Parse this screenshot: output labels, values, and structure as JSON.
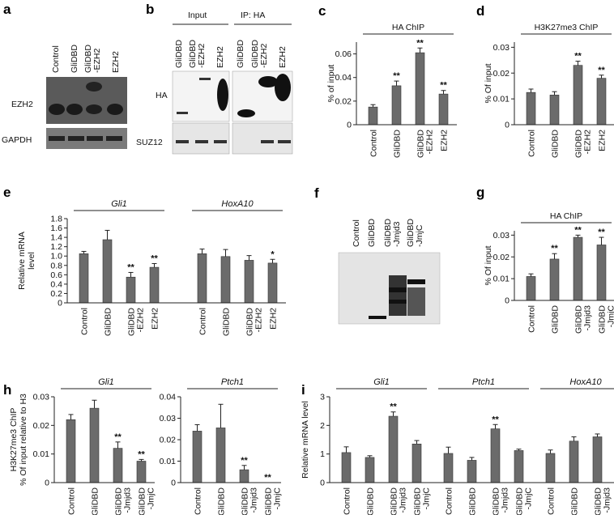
{
  "panels": {
    "a": {
      "label": "a",
      "lanes": [
        "Control",
        "GliDBD",
        "GliDBD\n-EZH2",
        "EZH2"
      ],
      "rows": [
        "EZH2",
        "GAPDH"
      ]
    },
    "b": {
      "label": "b",
      "groups": [
        "Input",
        "IP: HA"
      ],
      "lanes": [
        "GliDBD",
        "GliDBD\n-EZH2",
        "EZH2",
        "GliDBD",
        "GliDBD\n-EZH2",
        "EZH2"
      ],
      "rows": [
        "HA",
        "SUZ12"
      ]
    },
    "f": {
      "label": "f",
      "lanes": [
        "Control",
        "GliDBD",
        "GliDBD\n-Jmjd3",
        "GliDBD\n-JmjC"
      ]
    }
  },
  "chart_data": [
    {
      "id": "c",
      "panel_label": "c",
      "type": "bar",
      "groups": [
        {
          "name": "HA ChIP",
          "categories": [
            "Control",
            "GliDBD",
            "GliDBD\n-EZH2",
            "EZH2"
          ],
          "values": [
            0.015,
            0.033,
            0.061,
            0.026
          ],
          "errors": [
            0.002,
            0.004,
            0.004,
            0.003
          ],
          "stars": [
            "",
            "**",
            "**",
            "**"
          ]
        }
      ],
      "ylabel": "% of input",
      "ylim": [
        0,
        0.07
      ],
      "ticks": [
        0,
        0.02,
        0.04,
        0.06
      ],
      "tick_labels": [
        "0",
        "0.02",
        "0.04",
        "0.06"
      ]
    },
    {
      "id": "d",
      "panel_label": "d",
      "type": "bar",
      "groups": [
        {
          "name": "H3K27me3 ChIP",
          "categories": [
            "Control",
            "GliDBD",
            "GliDBD\n-EZH2",
            "EZH2"
          ],
          "values": [
            0.0125,
            0.0115,
            0.023,
            0.018
          ],
          "errors": [
            0.0013,
            0.0013,
            0.0016,
            0.0012
          ],
          "stars": [
            "",
            "",
            "**",
            "**"
          ]
        }
      ],
      "ylabel": "% Of input",
      "ylim": [
        0,
        0.032
      ],
      "ticks": [
        0,
        0.01,
        0.02,
        0.03
      ],
      "tick_labels": [
        "0",
        "0.01",
        "0.02",
        "0.03"
      ]
    },
    {
      "id": "e",
      "panel_label": "e",
      "type": "bar",
      "groups": [
        {
          "name": "Gli1",
          "italic": true,
          "categories": [
            "Control",
            "GliDBD",
            "GliDBD\n-EZH2",
            "EZH2"
          ],
          "values": [
            1.05,
            1.35,
            0.55,
            0.76
          ],
          "errors": [
            0.05,
            0.2,
            0.1,
            0.08
          ],
          "stars": [
            "",
            "",
            "**",
            "**"
          ]
        },
        {
          "name": "HoxA10",
          "italic": true,
          "categories": [
            "Control",
            "GliDBD",
            "GliDBD\n-EZH2",
            "EZH2"
          ],
          "values": [
            1.05,
            0.99,
            0.91,
            0.85
          ],
          "errors": [
            0.1,
            0.15,
            0.1,
            0.08
          ],
          "stars": [
            "",
            "",
            "",
            "*"
          ]
        }
      ],
      "ylabel": "Relative mRNA\nlevel",
      "ylim": [
        0,
        1.8
      ],
      "ticks": [
        0,
        0.2,
        0.4,
        0.6,
        0.8,
        1.0,
        1.2,
        1.4,
        1.6,
        1.8
      ],
      "tick_labels": [
        "0",
        "0.2",
        "0.4",
        "0.6",
        "0.8",
        "1.0",
        "1.2",
        "1.4",
        "1.6",
        "1.8"
      ]
    },
    {
      "id": "g",
      "panel_label": "g",
      "type": "bar",
      "groups": [
        {
          "name": "HA ChIP",
          "categories": [
            "Control",
            "GliDBD",
            "GliDBD\n-Jmjd3",
            "GliDBD\n-JmjC"
          ],
          "values": [
            0.011,
            0.019,
            0.029,
            0.0255
          ],
          "errors": [
            0.0012,
            0.0025,
            0.001,
            0.0035
          ],
          "stars": [
            "",
            "**",
            "**",
            "**"
          ]
        }
      ],
      "ylabel": "% Of input",
      "ylim": [
        0,
        0.032
      ],
      "ticks": [
        0,
        0.01,
        0.02,
        0.03
      ],
      "tick_labels": [
        "0",
        "0.01",
        "0.02",
        "0.03"
      ]
    },
    {
      "id": "h1",
      "panel_label": "h",
      "type": "bar",
      "groups": [
        {
          "name": "Gli1",
          "italic": true,
          "categories": [
            "Control",
            "GliDBD",
            "GliDBD\n-Jmjd3",
            "GliDBD\n-JmjC"
          ],
          "values": [
            0.022,
            0.026,
            0.012,
            0.0075
          ],
          "errors": [
            0.0018,
            0.0028,
            0.0022,
            0.0006
          ],
          "stars": [
            "",
            "",
            "**",
            "**"
          ]
        }
      ],
      "ylabel": "H3K27me3 ChIP\n% Of input relative to H3",
      "ylim": [
        0,
        0.03
      ],
      "ticks": [
        0,
        0.01,
        0.02,
        0.03
      ],
      "tick_labels": [
        "0",
        "0.01",
        "0.02",
        "0.03"
      ]
    },
    {
      "id": "h2",
      "type": "bar",
      "groups": [
        {
          "name": "Ptch1",
          "italic": true,
          "categories": [
            "Control",
            "GliDBD",
            "GliDBD\n-Jmjd3",
            "GliDBD\n-JmjC"
          ],
          "values": [
            0.024,
            0.0255,
            0.006,
            0.0
          ],
          "errors": [
            0.003,
            0.011,
            0.002,
            0.0
          ],
          "stars": [
            "",
            "",
            "**",
            "**"
          ]
        }
      ],
      "ylabel": "",
      "ylim": [
        0,
        0.04
      ],
      "ticks": [
        0,
        0.01,
        0.02,
        0.03,
        0.04
      ],
      "tick_labels": [
        "0",
        "0.01",
        "0.02",
        "0.03",
        "0.04"
      ]
    },
    {
      "id": "i",
      "panel_label": "i",
      "type": "bar",
      "groups": [
        {
          "name": "Gli1",
          "italic": true,
          "categories": [
            "Control",
            "GliDBD",
            "GliDBD\n-Jmjd3",
            "GliDBD\n-JmjC"
          ],
          "values": [
            1.05,
            0.88,
            2.32,
            1.35
          ],
          "errors": [
            0.2,
            0.06,
            0.15,
            0.12
          ],
          "stars": [
            "",
            "",
            "**",
            ""
          ]
        },
        {
          "name": "Ptch1",
          "italic": true,
          "categories": [
            "Control",
            "GliDBD",
            "GliDBD\n-Jmjd3",
            "GliDBD\n-JmjC"
          ],
          "values": [
            1.02,
            0.78,
            1.88,
            1.12
          ],
          "errors": [
            0.22,
            0.1,
            0.15,
            0.05
          ],
          "stars": [
            "",
            "",
            "**",
            ""
          ]
        },
        {
          "name": "HoxA10",
          "italic": true,
          "categories": [
            "Control",
            "GliDBD",
            "GliDBD\n-Jmjd3",
            "GliDBD\n-JmjC"
          ],
          "values": [
            1.02,
            1.45,
            1.6,
            1.3
          ],
          "errors": [
            0.12,
            0.15,
            0.1,
            0.2
          ],
          "stars": [
            "",
            "",
            "",
            ""
          ]
        }
      ],
      "ylabel": "Relative mRNA level",
      "ylim": [
        0,
        3
      ],
      "ticks": [
        0,
        1,
        2,
        3
      ],
      "tick_labels": [
        "0",
        "1",
        "2",
        "3"
      ]
    }
  ]
}
